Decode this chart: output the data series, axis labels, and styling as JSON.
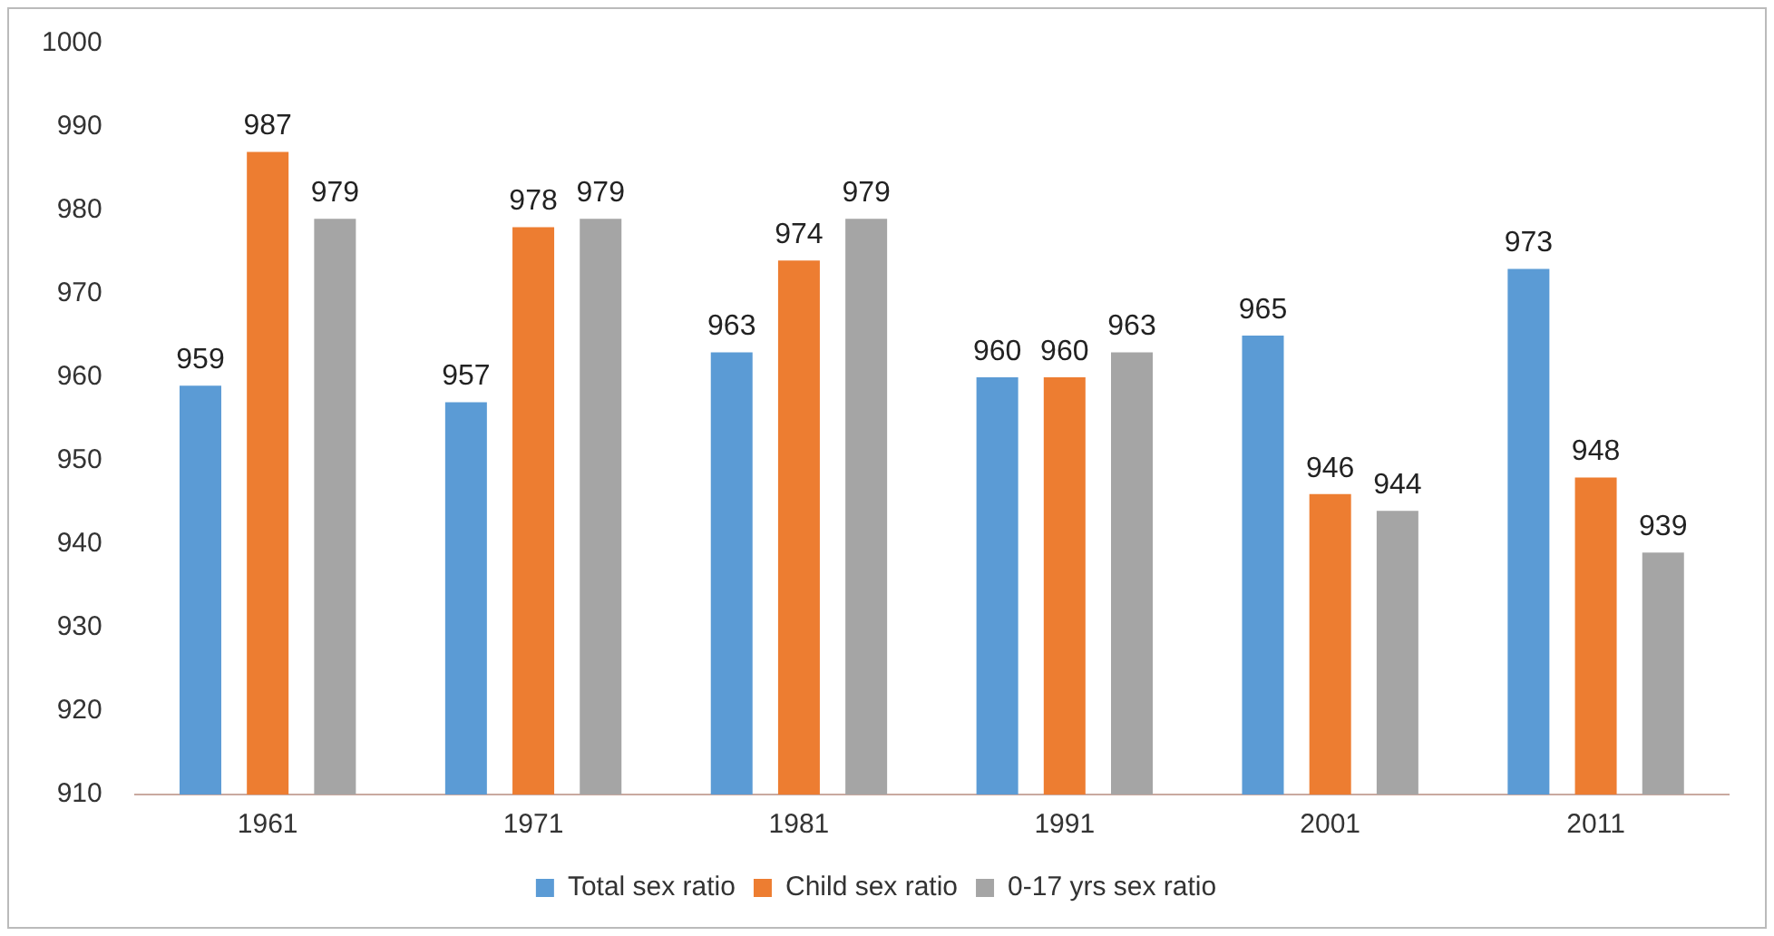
{
  "chart_data": {
    "type": "bar",
    "categories": [
      "1961",
      "1971",
      "1981",
      "1991",
      "2001",
      "2011"
    ],
    "series": [
      {
        "name": "Total sex ratio",
        "color": "#5b9bd5",
        "values": [
          959,
          957,
          963,
          960,
          965,
          973
        ]
      },
      {
        "name": "Child sex ratio",
        "color": "#ed7d31",
        "values": [
          987,
          978,
          974,
          960,
          946,
          948
        ]
      },
      {
        "name": "0-17 yrs sex ratio",
        "color": "#a5a5a5",
        "values": [
          979,
          979,
          979,
          963,
          944,
          939
        ]
      }
    ],
    "ylim": [
      910,
      1000
    ],
    "yticks": [
      910,
      920,
      930,
      940,
      950,
      960,
      970,
      980,
      990,
      1000
    ],
    "grid": false,
    "legend": "bottom",
    "data_labels": true
  }
}
